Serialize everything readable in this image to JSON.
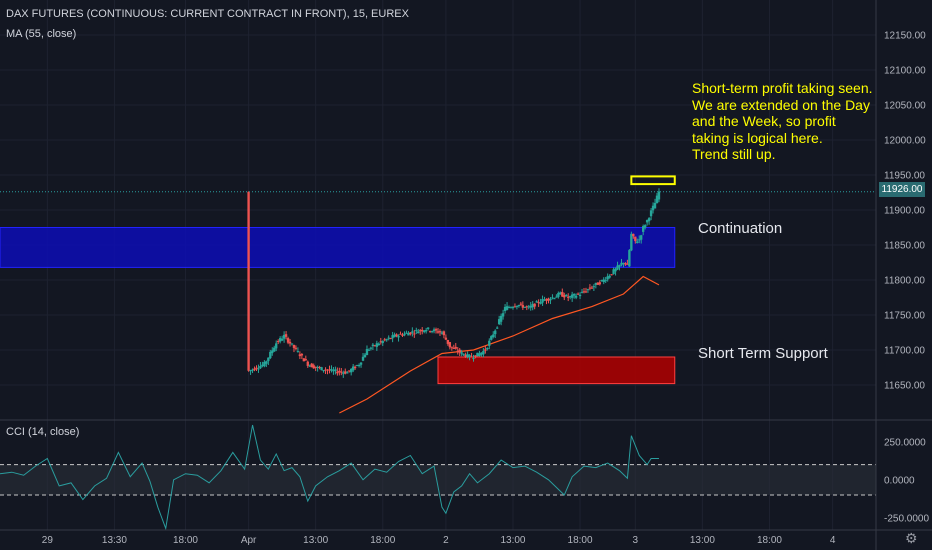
{
  "header": {
    "title": "DAX FUTURES (CONTINUOUS: CURRENT CONTRACT IN FRONT), 15, EUREX",
    "ma_label": "MA (55, close)",
    "cci_label": "CCI (14, close)"
  },
  "annotations": {
    "note_lines": [
      "Short-term profit taking seen.",
      "We are extended on the Day",
      "and the Week, so profit",
      "taking is logical here.",
      "Trend still up."
    ],
    "continuation_label": "Continuation",
    "support_label": "Short Term Support"
  },
  "price_tag": "11926.00",
  "colors": {
    "background": "#131722",
    "up_candle": "#26a69a",
    "down_candle": "#ef5350",
    "ma_line": "#ff5722",
    "cci_line": "#2a9d9e",
    "continuation_zone": "#0d0db5",
    "support_zone": "#b20000",
    "note": "#ffff00",
    "highlight_box": "#ffff00"
  },
  "icons": {
    "settings": "gear-icon"
  },
  "chart_data": [
    {
      "type": "candlestick",
      "title": "DAX FUTURES (CONTINUOUS: CURRENT CONTRACT IN FRONT), 15, EUREX",
      "ylim": [
        11600,
        12200
      ],
      "yticks": [
        "12150.00",
        "12100.00",
        "12050.00",
        "12000.00",
        "11950.00",
        "11900.00",
        "11850.00",
        "11800.00",
        "11750.00",
        "11700.00",
        "11650.00"
      ],
      "ytick_values": [
        12150,
        12100,
        12050,
        12000,
        11950,
        11900,
        11850,
        11800,
        11750,
        11700,
        11650
      ],
      "xticks": [
        "29",
        "13:30",
        "18:00",
        "Apr",
        "13:00",
        "18:00",
        "2",
        "13:00",
        "18:00",
        "3",
        "13:00",
        "18:00",
        "4"
      ],
      "xtick_bars": [
        12,
        29,
        47,
        63,
        80,
        97,
        113,
        130,
        147,
        161,
        178,
        195,
        211
      ],
      "bar_range": [
        0,
        222
      ],
      "first_bar": 63,
      "last_bar": 167,
      "key_points": [
        [
          63,
          11670
        ],
        [
          67,
          11680
        ],
        [
          70,
          11710
        ],
        [
          72,
          11720
        ],
        [
          75,
          11700
        ],
        [
          78,
          11680
        ],
        [
          80,
          11675
        ],
        [
          84,
          11670
        ],
        [
          88,
          11668
        ],
        [
          91,
          11680
        ],
        [
          93,
          11700
        ],
        [
          96,
          11710
        ],
        [
          100,
          11720
        ],
        [
          104,
          11725
        ],
        [
          108,
          11730
        ],
        [
          112,
          11725
        ],
        [
          114,
          11705
        ],
        [
          117,
          11695
        ],
        [
          119,
          11690
        ],
        [
          121,
          11693
        ],
        [
          123,
          11700
        ],
        [
          126,
          11735
        ],
        [
          128,
          11760
        ],
        [
          131,
          11765
        ],
        [
          134,
          11760
        ],
        [
          137,
          11770
        ],
        [
          140,
          11775
        ],
        [
          142,
          11780
        ],
        [
          144,
          11775
        ],
        [
          147,
          11780
        ],
        [
          150,
          11790
        ],
        [
          153,
          11800
        ],
        [
          156,
          11815
        ],
        [
          158,
          11826
        ],
        [
          159,
          11820
        ],
        [
          160,
          11865
        ],
        [
          161,
          11855
        ],
        [
          162,
          11858
        ],
        [
          163,
          11875
        ],
        [
          164,
          11885
        ],
        [
          166,
          11910
        ],
        [
          167,
          11926
        ]
      ],
      "current_price": 11926,
      "ma": {
        "name": "MA (55, close)",
        "points": [
          [
            86,
            11610
          ],
          [
            93,
            11630
          ],
          [
            104,
            11670
          ],
          [
            112,
            11695
          ],
          [
            120,
            11700
          ],
          [
            130,
            11720
          ],
          [
            140,
            11745
          ],
          [
            150,
            11762
          ],
          [
            158,
            11780
          ],
          [
            163,
            11805
          ],
          [
            167,
            11793
          ]
        ]
      },
      "zones": [
        {
          "label": "Continuation",
          "from_bar": 0,
          "to_bar": 171,
          "y_from": 11818,
          "y_to": 11875
        },
        {
          "label": "Short Term Support",
          "from_bar": 111,
          "to_bar": 171,
          "y_from": 11652,
          "y_to": 11690
        },
        {
          "label": "",
          "from_bar": 160,
          "to_bar": 171,
          "y_from": 11937,
          "y_to": 11948
        }
      ]
    },
    {
      "type": "line",
      "title": "CCI (14, close)",
      "series": [
        {
          "name": "CCI (14, close)",
          "points": [
            [
              0,
              40
            ],
            [
              3,
              50
            ],
            [
              6,
              30
            ],
            [
              9,
              90
            ],
            [
              12,
              140
            ],
            [
              15,
              -40
            ],
            [
              18,
              -20
            ],
            [
              21,
              -130
            ],
            [
              24,
              -40
            ],
            [
              27,
              10
            ],
            [
              30,
              180
            ],
            [
              33,
              20
            ],
            [
              36,
              110
            ],
            [
              38,
              -10
            ],
            [
              40,
              -180
            ],
            [
              42,
              -320
            ],
            [
              44,
              0
            ],
            [
              47,
              40
            ],
            [
              50,
              30
            ],
            [
              53,
              -20
            ],
            [
              56,
              60
            ],
            [
              59,
              180
            ],
            [
              62,
              70
            ],
            [
              64,
              360
            ],
            [
              66,
              130
            ],
            [
              68,
              70
            ],
            [
              70,
              170
            ],
            [
              72,
              60
            ],
            [
              74,
              80
            ],
            [
              76,
              20
            ],
            [
              78,
              -140
            ],
            [
              80,
              -40
            ],
            [
              83,
              20
            ],
            [
              86,
              60
            ],
            [
              89,
              110
            ],
            [
              92,
              0
            ],
            [
              95,
              70
            ],
            [
              98,
              50
            ],
            [
              101,
              120
            ],
            [
              104,
              160
            ],
            [
              107,
              40
            ],
            [
              110,
              90
            ],
            [
              112,
              -180
            ],
            [
              113,
              -220
            ],
            [
              115,
              -80
            ],
            [
              117,
              -40
            ],
            [
              119,
              40
            ],
            [
              121,
              -20
            ],
            [
              124,
              40
            ],
            [
              127,
              130
            ],
            [
              130,
              80
            ],
            [
              133,
              90
            ],
            [
              136,
              50
            ],
            [
              139,
              0
            ],
            [
              141,
              -50
            ],
            [
              143,
              -100
            ],
            [
              145,
              20
            ],
            [
              148,
              90
            ],
            [
              151,
              80
            ],
            [
              154,
              110
            ],
            [
              157,
              60
            ],
            [
              159,
              10
            ],
            [
              160,
              290
            ],
            [
              162,
              160
            ],
            [
              164,
              100
            ],
            [
              165,
              140
            ],
            [
              167,
              140
            ]
          ]
        }
      ],
      "ylim": [
        -330,
        380
      ],
      "yticks": [
        "250.0000",
        "0.0000",
        "-250.0000"
      ],
      "ytick_values": [
        250,
        0,
        -250
      ],
      "band": [
        -100,
        100
      ]
    }
  ]
}
